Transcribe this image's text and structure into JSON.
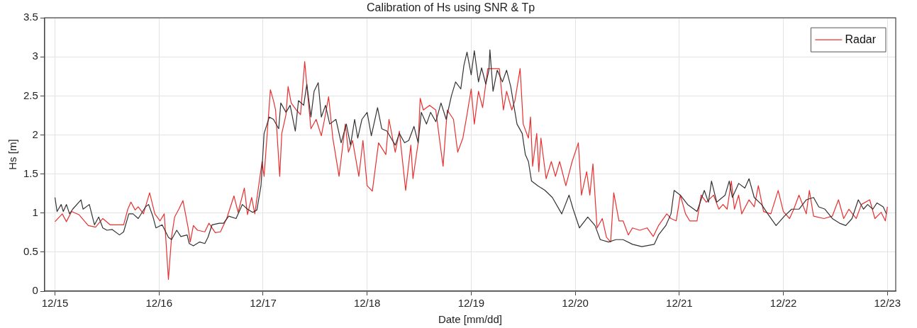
{
  "chart_data": {
    "type": "line",
    "title": "Calibration of Hs using SNR & Tp",
    "xlabel": "Date [mm/dd]",
    "ylabel": "Hs [m]",
    "xlim": [
      "--12-14T21:36",
      "--12-23T01:55"
    ],
    "ylim": [
      0,
      3.5
    ],
    "xticks": [
      {
        "value": "--12-15",
        "label": "12/15"
      },
      {
        "value": "--12-16",
        "label": "12/16"
      },
      {
        "value": "--12-17",
        "label": "12/17"
      },
      {
        "value": "--12-18",
        "label": "12/18"
      },
      {
        "value": "--12-19",
        "label": "12/19"
      },
      {
        "value": "--12-20",
        "label": "12/20"
      },
      {
        "value": "--12-21",
        "label": "12/21"
      },
      {
        "value": "--12-22",
        "label": "12/22"
      },
      {
        "value": "--12-23",
        "label": "12/23"
      }
    ],
    "yticks": [
      0,
      0.5,
      1,
      1.5,
      2,
      2.5,
      3,
      3.5
    ],
    "grid": true,
    "legend": "top right",
    "marker": "none",
    "line_style": "solid",
    "series": [
      {
        "color": "#333333",
        "x": [
          "--12-15T00:00",
          "--12-15T00:29",
          "--12-15T01:26",
          "--12-15T01:55",
          "--12-15T02:38",
          "--12-15T03:22",
          "--12-15T04:05",
          "--12-15T06:00",
          "--12-15T06:29",
          "--12-15T07:55",
          "--12-15T09:07",
          "--12-15T10:05",
          "--12-15T11:02",
          "--12-15T12:00",
          "--12-15T13:12",
          "--12-15T14:53",
          "--12-15T15:50",
          "--12-15T17:02",
          "--12-15T18:00",
          "--12-15T19:12",
          "--12-15T20:53",
          "--12-15T21:36",
          "--12-15T22:34",
          "--12-15T23:17",
          "--12-16T00:43",
          "--12-16T02:10",
          "--12-16T02:53",
          "--12-16T04:05",
          "--12-16T05:02",
          "--12-16T06:29",
          "--12-16T06:58",
          "--12-16T07:55",
          "--12-16T09:22",
          "--12-16T10:34",
          "--12-16T11:17",
          "--12-16T12:14",
          "--12-16T13:55",
          "--12-16T14:53",
          "--12-16T16:05",
          "--12-16T17:46",
          "--12-16T19:12",
          "--12-16T20:24",
          "--12-16T21:36",
          "--12-16T22:34",
          "--12-16T23:31",
          "--12-17T00:14",
          "--12-17T01:26",
          "--12-17T02:24",
          "--12-17T03:36",
          "--12-17T04:05",
          "--12-17T05:17",
          "--12-17T06:14",
          "--12-17T07:26",
          "--12-17T08:10",
          "--12-17T09:22",
          "--12-17T10:05",
          "--12-17T11:02",
          "--12-17T11:46",
          "--12-17T12:43",
          "--12-17T13:26",
          "--12-17T14:24",
          "--12-17T15:22",
          "--12-17T16:48",
          "--12-17T17:17",
          "--12-17T18:00",
          "--12-17T19:12",
          "--12-17T20:10",
          "--12-17T21:07",
          "--12-17T21:50",
          "--12-17T22:48",
          "--12-18T00:00",
          "--12-18T00:58",
          "--12-18T02:24",
          "--12-18T03:22",
          "--12-18T04:34",
          "--12-18T05:31",
          "--12-18T06:29",
          "--12-18T07:26",
          "--12-18T08:38",
          "--12-18T09:36",
          "--12-18T10:48",
          "--12-18T11:46",
          "--12-18T12:29",
          "--12-18T13:41",
          "--12-18T14:38",
          "--12-18T15:50",
          "--12-18T17:02",
          "--12-18T18:14",
          "--12-18T19:26",
          "--12-18T20:24",
          "--12-18T21:36",
          "--12-18T22:19",
          "--12-18T23:02",
          "--12-19T00:00",
          "--12-19T00:43",
          "--12-19T01:41",
          "--12-19T02:24",
          "--12-19T03:22",
          "--12-19T04:05",
          "--12-19T04:19",
          "--12-19T05:02",
          "--12-19T06:00",
          "--12-19T07:12",
          "--12-19T08:10",
          "--12-19T09:07",
          "--12-19T09:50",
          "--12-19T10:34",
          "--12-19T11:46",
          "--12-19T12:29",
          "--12-19T13:12",
          "--12-19T13:55",
          "--12-19T15:22",
          "--12-19T17:02",
          "--12-19T18:43",
          "--12-19T20:53",
          "--12-19T22:34",
          "--12-19T23:31",
          "--12-20T00:58",
          "--12-20T02:53",
          "--12-20T04:34",
          "--12-20T05:46",
          "--12-20T07:41",
          "--12-20T09:22",
          "--12-20T11:02",
          "--12-20T13:12",
          "--12-20T15:22",
          "--12-20T18:14",
          "--12-20T19:12",
          "--12-20T20:53",
          "--12-20T22:05",
          "--12-20T22:48",
          "--12-21T00:14",
          "--12-21T01:55",
          "--12-21T04:05",
          "--12-21T05:46",
          "--12-21T06:43",
          "--12-21T07:26",
          "--12-21T08:38",
          "--12-21T10:34",
          "--12-21T11:31",
          "--12-21T12:14",
          "--12-21T13:41",
          "--12-21T15:07",
          "--12-21T16:05",
          "--12-21T17:17",
          "--12-21T18:58",
          "--12-21T20:24",
          "--12-21T22:19",
          "--12-22T00:14",
          "--12-22T01:55",
          "--12-22T03:36",
          "--12-22T05:17",
          "--12-22T06:58",
          "--12-22T08:10",
          "--12-22T09:36",
          "--12-22T11:17",
          "--12-22T12:58",
          "--12-22T14:24",
          "--12-22T15:50",
          "--12-22T17:17",
          "--12-22T18:29",
          "--12-22T19:26",
          "--12-22T20:38",
          "--12-22T21:36",
          "--12-22T23:02",
          "--12-22T23:46"
        ],
        "values": [
          1.2,
          1.02,
          1.11,
          1.02,
          1.11,
          0.99,
          1.05,
          1.17,
          1.05,
          1.11,
          0.85,
          0.95,
          0.81,
          0.78,
          0.79,
          0.72,
          0.76,
          0.99,
          0.99,
          0.93,
          1.08,
          1.11,
          0.96,
          0.81,
          0.85,
          0.69,
          0.66,
          0.78,
          0.7,
          0.72,
          0.61,
          0.58,
          0.63,
          0.61,
          0.69,
          0.85,
          0.87,
          0.87,
          0.96,
          0.93,
          1.11,
          1.05,
          1.01,
          1.04,
          1.35,
          2.02,
          2.23,
          2.2,
          2.08,
          2.41,
          2.29,
          2.38,
          2.05,
          2.44,
          2.38,
          2.65,
          2.23,
          2.56,
          2.67,
          2.23,
          2.38,
          2.14,
          2.2,
          2.08,
          1.9,
          2.14,
          1.87,
          2.2,
          1.96,
          2.2,
          2.29,
          1.99,
          2.35,
          2.08,
          2.05,
          1.96,
          1.87,
          2.02,
          1.9,
          1.93,
          2.11,
          1.9,
          2.29,
          2.14,
          2.29,
          2.17,
          2.41,
          2.2,
          2.5,
          2.68,
          2.59,
          2.89,
          3.06,
          2.77,
          3.08,
          2.68,
          2.86,
          2.65,
          2.83,
          3.09,
          2.56,
          2.83,
          2.68,
          2.83,
          2.62,
          2.38,
          2.14,
          2.02,
          1.75,
          1.66,
          1.41,
          1.35,
          1.29,
          1.2,
          0.99,
          1.23,
          1.05,
          0.81,
          0.95,
          0.84,
          0.66,
          0.63,
          0.66,
          0.66,
          0.6,
          0.57,
          0.6,
          0.72,
          0.84,
          0.99,
          1.29,
          1.23,
          1.11,
          1.02,
          1.29,
          1.14,
          1.41,
          1.14,
          1.23,
          1.41,
          1.2,
          1.38,
          1.32,
          1.44,
          1.2,
          1.11,
          0.99,
          0.84,
          0.96,
          1.05,
          1.05,
          1.17,
          1.2,
          1.08,
          1.05,
          0.93,
          0.87,
          0.84,
          0.93,
          1.17,
          1.05,
          1.11,
          1.05,
          1.13,
          1.08,
          0.99
        ]
      },
      {
        "name": "Radar",
        "color": "#e83030",
        "x": [
          "--12-15T00:00",
          "--12-15T01:41",
          "--12-15T02:38",
          "--12-15T03:50",
          "--12-15T05:31",
          "--12-15T07:41",
          "--12-15T09:22",
          "--12-15T11:02",
          "--12-15T12:43",
          "--12-15T15:50",
          "--12-15T16:48",
          "--12-15T17:31",
          "--12-15T18:29",
          "--12-15T19:12",
          "--12-15T20:24",
          "--12-15T21:50",
          "--12-15T23:02",
          "--12-16T00:14",
          "--12-16T01:12",
          "--12-16T02:10",
          "--12-16T02:53",
          "--12-16T03:36",
          "--12-16T04:34",
          "--12-16T05:31",
          "--12-16T06:43",
          "--12-16T07:12",
          "--12-16T07:55",
          "--12-16T08:53",
          "--12-16T10:34",
          "--12-16T11:31",
          "--12-16T12:58",
          "--12-16T14:10",
          "--12-16T15:36",
          "--12-16T17:17",
          "--12-16T18:14",
          "--12-16T19:41",
          "--12-16T20:24",
          "--12-16T21:22",
          "--12-16T22:05",
          "--12-16T23:46",
          "--12-17T00:14",
          "--12-17T01:41",
          "--12-17T02:24",
          "--12-17T02:53",
          "--12-17T03:50",
          "--12-17T04:19",
          "--12-17T05:17",
          "--12-17T05:46",
          "--12-17T06:29",
          "--12-17T07:41",
          "--12-17T08:38",
          "--12-17T09:36",
          "--12-17T10:19",
          "--12-17T11:02",
          "--12-17T12:14",
          "--12-17T13:26",
          "--12-17T14:10",
          "--12-17T15:07",
          "--12-17T16:05",
          "--12-17T17:31",
          "--12-17T18:58",
          "--12-17T19:41",
          "--12-17T20:38",
          "--12-17T22:05",
          "--12-17T23:02",
          "--12-18T00:00",
          "--12-18T01:12",
          "--12-18T02:38",
          "--12-18T04:19",
          "--12-18T05:02",
          "--12-18T06:29",
          "--12-18T07:26",
          "--12-18T08:53",
          "--12-18T10:05",
          "--12-18T10:34",
          "--12-18T11:46",
          "--12-18T12:14",
          "--12-18T12:58",
          "--12-18T14:24",
          "--12-18T15:50",
          "--12-18T16:48",
          "--12-18T17:31",
          "--12-18T18:29",
          "--12-18T19:55",
          "--12-18T20:53",
          "--12-18T22:05",
          "--12-18T23:02",
          "--12-19T00:00",
          "--12-19T00:43",
          "--12-19T01:41",
          "--12-19T02:38",
          "--12-19T03:50",
          "--12-19T06:29",
          "--12-19T07:26",
          "--12-19T08:10",
          "--12-19T09:22",
          "--12-19T10:05",
          "--12-19T11:17",
          "--12-19T12:00",
          "--12-19T13:12",
          "--12-19T13:41",
          "--12-19T14:10",
          "--12-19T15:07",
          "--12-19T15:36",
          "--12-19T16:05",
          "--12-19T17:17",
          "--12-19T18:29",
          "--12-19T19:26",
          "--12-19T20:24",
          "--12-19T21:50",
          "--12-19T23:17",
          "--12-20T00:43",
          "--12-20T01:26",
          "--12-20T02:38",
          "--12-20T03:22",
          "--12-20T04:05",
          "--12-20T05:02",
          "--12-20T06:14",
          "--12-20T07:12",
          "--12-20T08:10",
          "--12-20T08:53",
          "--12-20T10:05",
          "--12-20T11:02",
          "--12-20T12:14",
          "--12-20T13:12",
          "--12-20T14:53",
          "--12-20T16:34",
          "--12-20T18:00",
          "--12-20T19:12",
          "--12-20T21:07",
          "--12-20T22:05",
          "--12-20T23:17",
          "--12-21T00:14",
          "--12-21T01:26",
          "--12-21T02:24",
          "--12-21T04:05",
          "--12-21T05:02",
          "--12-21T06:14",
          "--12-21T07:55",
          "--12-21T09:07",
          "--12-21T10:05",
          "--12-21T11:02",
          "--12-21T12:00",
          "--12-21T12:43",
          "--12-21T13:41",
          "--12-21T14:24",
          "--12-21T16:05",
          "--12-21T17:17",
          "--12-21T18:14",
          "--12-21T19:26",
          "--12-21T21:07",
          "--12-21T22:48",
          "--12-22T00:00",
          "--12-22T01:26",
          "--12-22T02:24",
          "--12-22T03:36",
          "--12-22T05:17",
          "--12-22T06:00",
          "--12-22T06:58",
          "--12-22T09:22",
          "--12-22T11:17",
          "--12-22T12:43",
          "--12-22T13:55",
          "--12-22T15:07",
          "--12-22T16:48",
          "--12-22T18:00",
          "--12-22T19:55",
          "--12-22T21:07",
          "--12-22T22:34",
          "--12-22T23:31",
          "--12-23T00:00"
        ],
        "values": [
          0.89,
          0.99,
          0.89,
          1.02,
          0.98,
          0.84,
          0.82,
          0.93,
          0.85,
          0.85,
          1.05,
          1.14,
          1.04,
          1.08,
          0.99,
          1.26,
          0.99,
          0.9,
          0.99,
          0.15,
          0.69,
          0.95,
          1.05,
          1.16,
          0.81,
          0.63,
          0.84,
          0.78,
          0.76,
          0.87,
          0.75,
          0.76,
          0.93,
          1.22,
          1.01,
          1.32,
          0.98,
          1.2,
          0.99,
          1.66,
          1.47,
          2.58,
          2.44,
          2.32,
          1.47,
          2.02,
          2.26,
          2.62,
          2.41,
          2.32,
          2.26,
          2.94,
          2.5,
          2.08,
          2.2,
          1.99,
          2.2,
          2.49,
          1.96,
          1.47,
          2.14,
          1.78,
          1.93,
          1.47,
          1.93,
          1.35,
          1.28,
          1.9,
          1.75,
          2.2,
          1.78,
          2.05,
          1.29,
          1.87,
          1.44,
          1.9,
          2.47,
          2.32,
          2.38,
          2.32,
          1.9,
          1.6,
          2.32,
          2.2,
          1.78,
          1.96,
          2.26,
          2.59,
          2.14,
          2.56,
          2.35,
          2.85,
          2.85,
          2.32,
          2.56,
          2.32,
          2.44,
          2.85,
          2.14,
          1.96,
          2.23,
          1.6,
          2.02,
          1.53,
          1.96,
          1.44,
          1.66,
          1.47,
          1.66,
          1.35,
          1.66,
          1.9,
          1.23,
          1.53,
          1.23,
          1.63,
          0.81,
          0.93,
          0.69,
          0.63,
          1.26,
          0.9,
          0.9,
          0.72,
          0.81,
          0.78,
          0.81,
          0.7,
          0.84,
          0.99,
          0.93,
          0.9,
          1.23,
          0.99,
          0.9,
          0.9,
          1.23,
          1.14,
          1.23,
          1.05,
          1.11,
          1.05,
          1.41,
          1.05,
          1.23,
          0.99,
          1.17,
          1.08,
          1.35,
          1.02,
          0.99,
          1.29,
          1.02,
          0.93,
          1.05,
          1.23,
          0.99,
          1.29,
          0.96,
          0.93,
          0.96,
          1.17,
          0.93,
          1.05,
          0.93,
          1.11,
          1.17,
          0.93,
          1.01,
          0.9,
          1.08
        ]
      }
    ]
  }
}
